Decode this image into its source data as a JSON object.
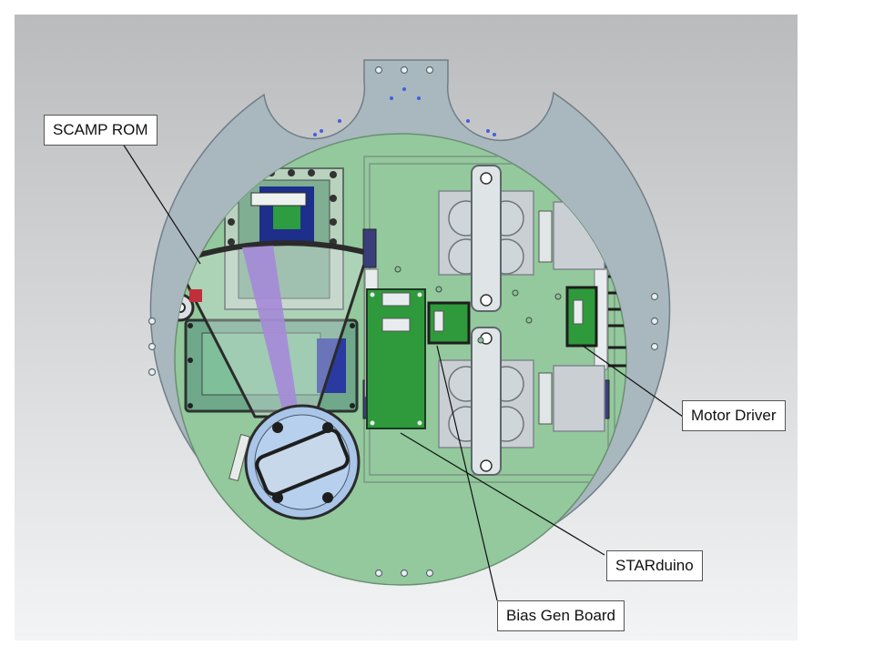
{
  "diagram": {
    "labels": {
      "scamp_rom": "SCAMP ROM",
      "motor_driver": "Motor Driver",
      "starduino": "STARduino",
      "bias_gen_board": "Bias Gen Board"
    },
    "colors": {
      "background_top": "#b9bbbd",
      "background_bottom": "#f3f4f5",
      "outer_ring": "#a9b7bf",
      "inner_plate": "#93c99c",
      "pcb_green": "#2f9a3c",
      "grey_block": "#c9cfd3",
      "purple_strip": "#a58ad8",
      "lens_blue": "#a9c5e8",
      "leader_line": "#111111"
    }
  }
}
